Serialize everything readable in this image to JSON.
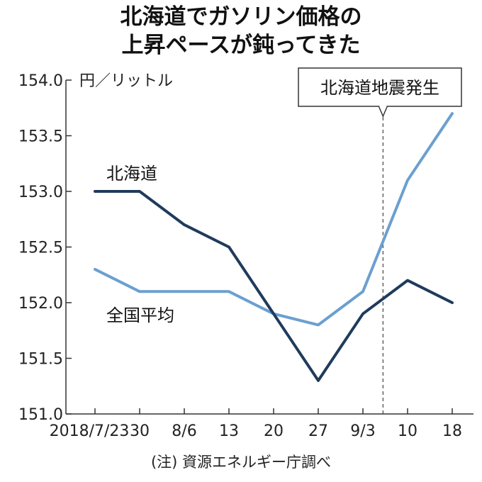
{
  "chart_data": {
    "type": "line",
    "title": "北海道でガソリン価格の",
    "subtitle": "上昇ペースが鈍ってきた",
    "ylabel": "円／リットル",
    "ylim": [
      151.0,
      154.0
    ],
    "yticks": [
      "154.0",
      "153.5",
      "153.0",
      "152.5",
      "152.0",
      "151.5",
      "151.0"
    ],
    "categories": [
      "2018/7/23",
      "30",
      "8/6",
      "13",
      "20",
      "27",
      "9/3",
      "10",
      "18"
    ],
    "series": [
      {
        "name": "北海道",
        "color": "#1f3b5c",
        "values": [
          153.0,
          153.0,
          152.7,
          152.5,
          151.9,
          151.3,
          151.9,
          152.2,
          152.0
        ]
      },
      {
        "name": "全国平均",
        "color": "#6b9fd0",
        "values": [
          152.3,
          152.1,
          152.1,
          152.1,
          151.9,
          151.8,
          152.1,
          153.1,
          153.7
        ]
      }
    ],
    "annotation": {
      "text": "北海道地震発生",
      "position_index": 6.45
    },
    "source": "(注) 資源エネルギー庁調べ"
  }
}
